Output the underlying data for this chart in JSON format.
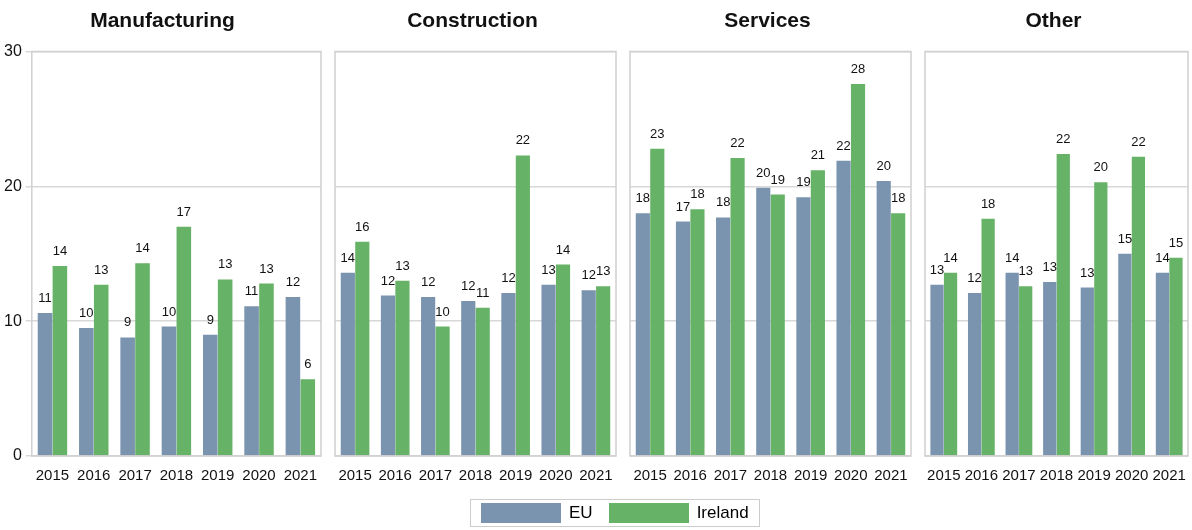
{
  "chart_data": [
    {
      "type": "bar",
      "title": "Manufacturing",
      "categories": [
        "2015",
        "2016",
        "2017",
        "2018",
        "2019",
        "2020",
        "2021"
      ],
      "ylim": [
        0,
        30
      ],
      "yticks": [
        0,
        10,
        20,
        30
      ],
      "grid": "y",
      "legend": "bottom",
      "series": [
        {
          "name": "EU",
          "color": "#7a93ae",
          "values": [
            10.6,
            9.5,
            8.8,
            9.6,
            9.0,
            11.1,
            11.8
          ],
          "value_labels": [
            "11",
            "10",
            "9",
            "10",
            "9",
            "11",
            "12"
          ]
        },
        {
          "name": "Ireland",
          "color": "#66b266",
          "values": [
            14.1,
            12.7,
            14.3,
            17.0,
            13.1,
            12.8,
            5.7
          ],
          "value_labels": [
            "14",
            "13",
            "14",
            "17",
            "13",
            "13",
            "6"
          ]
        }
      ]
    },
    {
      "type": "bar",
      "title": "Construction",
      "categories": [
        "2015",
        "2016",
        "2017",
        "2018",
        "2019",
        "2020",
        "2021"
      ],
      "ylim": [
        0,
        30
      ],
      "yticks": [
        0,
        10,
        20,
        30
      ],
      "grid": "y",
      "tick_labels": "x",
      "series": [
        {
          "color": "#7a93ae",
          "values": [
            13.6,
            11.9,
            11.8,
            11.5,
            12.1,
            12.7,
            12.3
          ],
          "value_labels": [
            "14",
            "12",
            "12",
            "12",
            "12",
            "13",
            "12"
          ]
        },
        {
          "color": "#66b266",
          "values": [
            15.9,
            13.0,
            9.6,
            11.0,
            22.3,
            14.2,
            12.6
          ],
          "value_labels": [
            "16",
            "13",
            "10",
            "11",
            "22",
            "14",
            "13"
          ]
        }
      ]
    },
    {
      "type": "bar",
      "title": "Services",
      "categories": [
        "2015",
        "2016",
        "2017",
        "2018",
        "2019",
        "2020",
        "2021"
      ],
      "ylim": [
        0,
        30
      ],
      "yticks": [
        0,
        10,
        20,
        30
      ],
      "grid": "y",
      "tick_labels": "x",
      "series": [
        {
          "color": "#7a93ae",
          "values": [
            18.0,
            17.4,
            17.7,
            19.9,
            19.2,
            21.9,
            20.4
          ],
          "value_labels": [
            "18",
            "17",
            "18",
            "20",
            "19",
            "22",
            "20"
          ]
        },
        {
          "color": "#66b266",
          "values": [
            22.8,
            18.3,
            22.1,
            19.4,
            21.2,
            27.6,
            18.0
          ],
          "value_labels": [
            "23",
            "18",
            "22",
            "19",
            "21",
            "28",
            "18"
          ]
        }
      ]
    },
    {
      "type": "bar",
      "title": "Other",
      "categories": [
        "2015",
        "2016",
        "2017",
        "2018",
        "2019",
        "2020",
        "2021"
      ],
      "ylim": [
        0,
        30
      ],
      "yticks": [
        0,
        10,
        20,
        30
      ],
      "grid": "y",
      "tick_labels": "x",
      "series": [
        {
          "color": "#7a93ae",
          "values": [
            12.7,
            12.1,
            13.6,
            12.9,
            12.5,
            15.0,
            13.6
          ],
          "value_labels": [
            "13",
            "12",
            "14",
            "13",
            "13",
            "15",
            "14"
          ]
        },
        {
          "color": "#66b266",
          "values": [
            13.6,
            17.6,
            12.6,
            22.4,
            20.3,
            22.2,
            14.7
          ],
          "value_labels": [
            "14",
            "18",
            "13",
            "22",
            "20",
            "22",
            "15"
          ]
        }
      ]
    }
  ]
}
